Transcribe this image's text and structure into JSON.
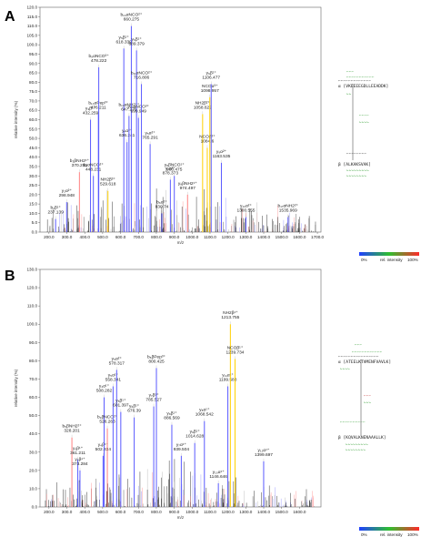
{
  "chart_data": [
    {
      "panel": "A",
      "type": "bar",
      "xlabel": "m/z",
      "ylabel": "relative intensity (%)",
      "xlim": [
        150,
        1720
      ],
      "ylim": [
        0,
        120
      ],
      "xticks": [
        200,
        300,
        400,
        500,
        600,
        700,
        800,
        900,
        1000,
        1100,
        1200,
        1300,
        1400,
        1500,
        1600,
        1700
      ],
      "xtick_labels": [
        "200.0",
        "300.0",
        "400.0",
        "500.0",
        "600.0",
        "700.0",
        "800.0",
        "900.0",
        "1000.0",
        "1100.0",
        "1200.0",
        "1300.0",
        "1400.0",
        "1500.0",
        "1600.0",
        "1700.0"
      ],
      "yticks": [
        0,
        5,
        10,
        15,
        20,
        25,
        30,
        35,
        40,
        45,
        50,
        55,
        60,
        65,
        70,
        75,
        80,
        85,
        90,
        95,
        100,
        105,
        110,
        115,
        120
      ],
      "ytick_labels": [
        "0.0",
        "5.0",
        "10.0",
        "15.0",
        "20.0",
        "25.0",
        "30.0",
        "35.0",
        "40.0",
        "45.0",
        "50.0",
        "55.0",
        "60.0",
        "65.0",
        "70.0",
        "75.0",
        "80.0",
        "85.0",
        "90.0",
        "95.0",
        "100.0",
        "105.0",
        "110.0",
        "115.0",
        "120.0"
      ],
      "peaks": [
        {
          "mz": 237.139,
          "y": 7,
          "color": "#5a5aff",
          "label": [
            "b₂β¹⁺",
            "237.139"
          ]
        },
        {
          "mz": 298.948,
          "y": 16,
          "color": "#5a5aff",
          "label": [
            "y₂α²⁺",
            "298.948"
          ]
        },
        {
          "mz": 370.252,
          "y": 32,
          "color": "#ff8080",
          "label": [
            "b₃βNH2¹⁺",
            "370.252"
          ]
        },
        {
          "mz": 432.259,
          "y": 60,
          "color": "#5a5aff",
          "label": [
            "y₃β¹⁺",
            "432.259"
          ]
        },
        {
          "mz": 448.231,
          "y": 30,
          "color": "#5a5aff",
          "label": [
            "b₄αNCO²⁺",
            "448.231"
          ]
        },
        {
          "mz": 476.211,
          "y": 63,
          "color": "#5a5aff",
          "label": [
            "b₁₀αPep³⁺",
            "476.211"
          ]
        },
        {
          "mz": 478.222,
          "y": 88,
          "color": "#5a5aff",
          "label": [
            "b₉αNCO³⁺",
            "478.222"
          ]
        },
        {
          "mz": 529.618,
          "y": 22,
          "color": "#ffd000",
          "label": [
            "NH2β³⁺",
            "529.618"
          ]
        },
        {
          "mz": 618.339,
          "y": 98,
          "color": "#5a5aff",
          "label": [
            "y₅β¹⁺",
            "618.339"
          ]
        },
        {
          "mz": 636.241,
          "y": 48,
          "color": "#5a5aff",
          "label": [
            "y₄α²⁺",
            "636.241"
          ]
        },
        {
          "mz": 647.279,
          "y": 62,
          "color": "#5a5aff",
          "label": [
            "b₁₃αNH2³⁺",
            "647.279"
          ]
        },
        {
          "mz": 660.275,
          "y": 110,
          "color": "#5a5aff",
          "label": [
            "b₁₀αNCO²⁺",
            "660.275"
          ]
        },
        {
          "mz": 689.379,
          "y": 97,
          "color": "#5a5aff",
          "label": [
            "y₆β¹⁺",
            "689.379"
          ]
        },
        {
          "mz": 699.949,
          "y": 61,
          "color": "#5a5aff",
          "label": [
            "y₁₀αNCO³⁺",
            "699.949"
          ]
        },
        {
          "mz": 716.806,
          "y": 79,
          "color": "#5a5aff",
          "label": [
            "b₁₁αNCO²⁺",
            "716.806"
          ]
        },
        {
          "mz": 765.291,
          "y": 47,
          "color": "#5a5aff",
          "label": [
            "y₅α²⁺",
            "765.291"
          ]
        },
        {
          "mz": 830.74,
          "y": 10,
          "color": "#5a5aff",
          "label": [
            "b₆α²⁺",
            "830.74"
          ]
        },
        {
          "mz": 878.373,
          "y": 28,
          "color": "#5a5aff",
          "label": [
            "y₇α²⁺",
            "878.373"
          ]
        },
        {
          "mz": 900.475,
          "y": 30,
          "color": "#5a5aff",
          "label": [
            "y₈βNCO¹⁺",
            "900.475"
          ]
        },
        {
          "mz": 974.497,
          "y": 20,
          "color": "#ff8080",
          "label": [
            "y₈βNH2¹⁺",
            "974.497"
          ]
        },
        {
          "mz": 1058.622,
          "y": 63,
          "color": "#ffd000",
          "label": [
            "NH2β²⁺",
            "1058.622"
          ]
        },
        {
          "mz": 1084.6,
          "y": 45,
          "color": "#ffd000",
          "label": [
            "NCOβ²⁺",
            "1084.6"
          ]
        },
        {
          "mz": 1098.957,
          "y": 72,
          "color": "#ffd000",
          "label": [
            "NCOα³⁺",
            "1098.957"
          ]
        },
        {
          "mz": 1106.477,
          "y": 79,
          "color": "#5a5aff",
          "label": [
            "y₉β¹⁺",
            "1106.477"
          ]
        },
        {
          "mz": 1163.535,
          "y": 37,
          "color": "#5a5aff",
          "label": [
            "y₉α²⁺",
            "1163.535"
          ]
        },
        {
          "mz": 1300.555,
          "y": 8,
          "color": "#5a5aff",
          "label": [
            "y₁₀α²⁺",
            "1300.555"
          ]
        },
        {
          "mz": 1535.969,
          "y": 8,
          "color": "#5a5aff",
          "label": [
            "b₁₇αNH2²⁺",
            "1535.969"
          ]
        }
      ],
      "sequences": [
        "α [VKEEEEGDLLEEADDK]",
        "β [ALKAKSVAK]"
      ]
    },
    {
      "panel": "B",
      "type": "bar",
      "xlabel": "m/z",
      "ylabel": "relative intensity (%)",
      "xlim": [
        150,
        1720
      ],
      "ylim": [
        0,
        130
      ],
      "xticks": [
        200,
        300,
        400,
        500,
        600,
        700,
        800,
        900,
        1000,
        1100,
        1200,
        1300,
        1400,
        1500,
        1600
      ],
      "xtick_labels": [
        "200.0",
        "300.0",
        "400.0",
        "500.0",
        "600.0",
        "700.0",
        "800.0",
        "900.0",
        "1000.0",
        "1100.0",
        "1200.0",
        "1300.0",
        "1400.0",
        "1500.0",
        "1600.0"
      ],
      "yticks": [
        0,
        10,
        20,
        30,
        40,
        50,
        60,
        70,
        80,
        90,
        100,
        110,
        120,
        130
      ],
      "ytick_labels": [
        "0.0",
        "10.0",
        "20.0",
        "30.0",
        "40.0",
        "50.0",
        "60.0",
        "70.0",
        "80.0",
        "90.0",
        "100.0",
        "110.0",
        "120.0",
        "130.0"
      ],
      "peaks": [
        {
          "mz": 328.201,
          "y": 38,
          "color": "#ff8080",
          "label": [
            "b₅βNH2²⁺",
            "328.201"
          ]
        },
        {
          "mz": 361.211,
          "y": 26,
          "color": "#5a5aff",
          "label": [
            "y₃β¹⁺",
            "361.211"
          ]
        },
        {
          "mz": 373.284,
          "y": 20,
          "color": "#5a5aff",
          "label": [
            "y₂β¹⁺",
            "373.284"
          ]
        },
        {
          "mz": 502.334,
          "y": 28,
          "color": "#5a5aff",
          "label": [
            "y₄β¹⁺",
            "502.334"
          ]
        },
        {
          "mz": 508.282,
          "y": 60,
          "color": "#5a5aff",
          "label": [
            "y₄α¹⁺",
            "508.282"
          ]
        },
        {
          "mz": 526.263,
          "y": 43,
          "color": "#ff8080",
          "label": [
            "b₃βNCO²⁺",
            "526.263"
          ]
        },
        {
          "mz": 558.341,
          "y": 66,
          "color": "#5a5aff",
          "label": [
            "y₅α¹⁺",
            "558.341"
          ]
        },
        {
          "mz": 578.317,
          "y": 75,
          "color": "#5a5aff",
          "label": [
            "y₅α²⁺",
            "578.317"
          ]
        },
        {
          "mz": 601.397,
          "y": 52,
          "color": "#5a5aff",
          "label": [
            "y₅β¹⁺",
            "601.397"
          ]
        },
        {
          "mz": 676.39,
          "y": 49,
          "color": "#5a5aff",
          "label": [
            "y₆β¹⁺",
            "676.39"
          ]
        },
        {
          "mz": 785.527,
          "y": 55,
          "color": "#5a5aff",
          "label": [
            "y₇β¹⁺",
            "785.527"
          ]
        },
        {
          "mz": 800.425,
          "y": 76,
          "color": "#5a5aff",
          "label": [
            "b₆βPep³⁺",
            "800.425"
          ]
        },
        {
          "mz": 886.569,
          "y": 45,
          "color": "#5a5aff",
          "label": [
            "y₈β¹⁺",
            "886.569"
          ]
        },
        {
          "mz": 939.504,
          "y": 28,
          "color": "#5a5aff",
          "label": [
            "y₇α¹⁺",
            "939.504"
          ]
        },
        {
          "mz": 1014.628,
          "y": 35,
          "color": "#5a5aff",
          "label": [
            "y₉β¹⁺",
            "1014.628"
          ]
        },
        {
          "mz": 1068.542,
          "y": 47,
          "color": "#5a5aff",
          "label": [
            "y₈α¹⁺",
            "1068.542"
          ]
        },
        {
          "mz": 1146.646,
          "y": 13,
          "color": "#5a5aff",
          "label": [
            "y₁₀α¹⁺",
            "1146.646"
          ]
        },
        {
          "mz": 1199.588,
          "y": 66,
          "color": "#5a5aff",
          "label": [
            "y₁₁α¹⁺",
            "1199.588"
          ]
        },
        {
          "mz": 1213.755,
          "y": 100,
          "color": "#ffd000",
          "label": [
            "NH2β¹⁺",
            "1213.755"
          ]
        },
        {
          "mz": 1239.734,
          "y": 81,
          "color": "#ffd000",
          "label": [
            "NCOβ¹⁺",
            "1239.734"
          ]
        },
        {
          "mz": 1399.697,
          "y": 25,
          "color": "#5a5aff",
          "label": [
            "y₁₂α¹⁺",
            "1399.697"
          ]
        }
      ],
      "sequences": [
        "α [ATEELKTVMENFVAVLK]",
        "β [KQVALKNENAAALLK]"
      ]
    }
  ],
  "legend": {
    "low": "0%",
    "mid": "rel. intensity",
    "high": "100%"
  }
}
